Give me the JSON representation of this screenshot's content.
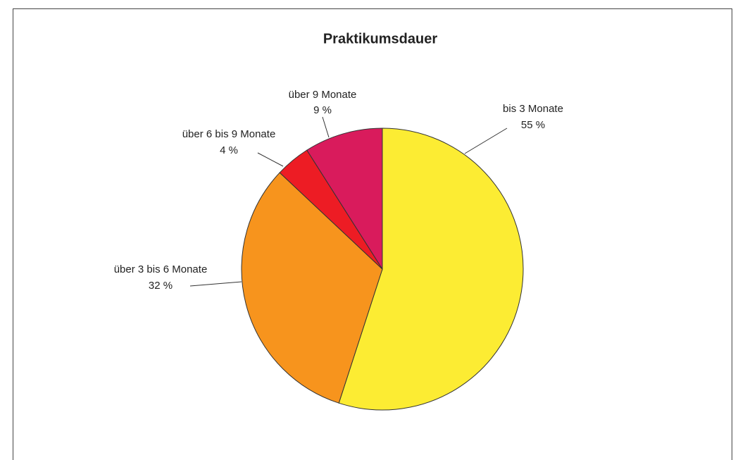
{
  "chart_data": {
    "type": "pie",
    "title": "Praktikumsdauer",
    "categories": [
      "bis 3 Monate",
      "über 3 bis 6 Monate",
      "über 6 bis 9 Monate",
      "über 9 Monate"
    ],
    "values": [
      55,
      32,
      4,
      9
    ],
    "value_labels": [
      "55 %",
      "32 %",
      "4 %",
      "9 %"
    ],
    "colors": [
      "#fcec33",
      "#f7941d",
      "#ed1c24",
      "#d91b5c"
    ]
  }
}
